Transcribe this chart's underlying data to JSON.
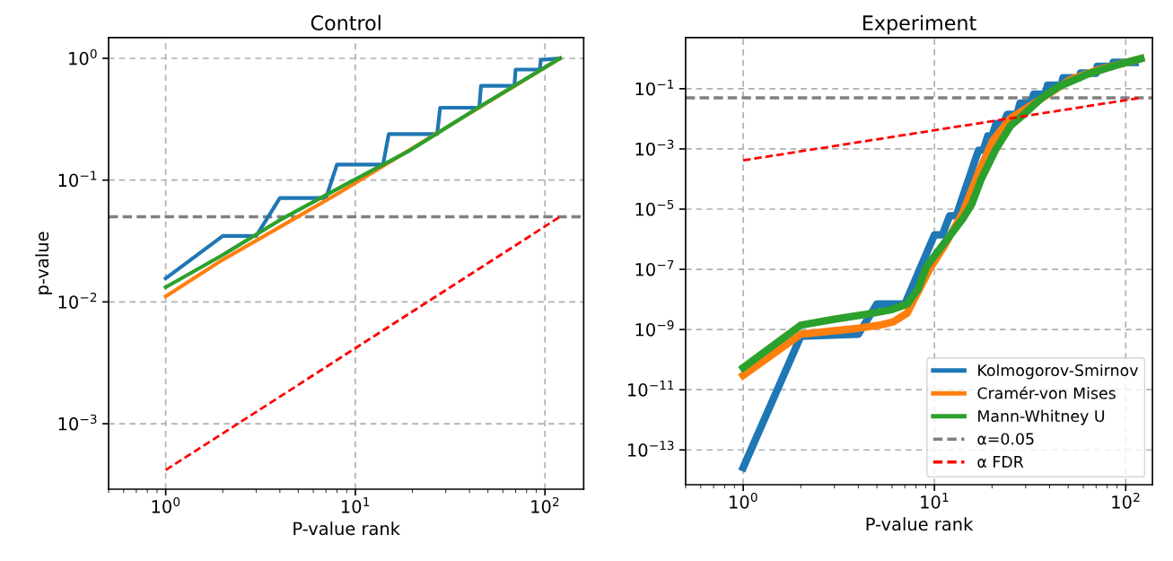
{
  "chart_data": [
    {
      "type": "line",
      "title": "Control",
      "xlabel": "P-value rank",
      "ylabel": "p-value",
      "log": "xy",
      "grid": true,
      "legend": false,
      "xlim": [
        0.5,
        160
      ],
      "ylim": [
        0.00029,
        1.48
      ],
      "xticks": [
        {
          "value": 1,
          "label": "10$^{0}$"
        },
        {
          "value": 10,
          "label": "10$^{1}$"
        },
        {
          "value": 100,
          "label": "10$^{2}$"
        }
      ],
      "yticks": [
        {
          "value": 0.001,
          "label": "10$^{−3}$"
        },
        {
          "value": 0.01,
          "label": "10$^{−2}$"
        },
        {
          "value": 0.1,
          "label": "10$^{−1}$"
        },
        {
          "value": 1,
          "label": "10$^{0}$"
        }
      ],
      "ref_lines": [
        {
          "axis": "y",
          "value": 0.05,
          "color": "#808080",
          "line_style": "dashed"
        }
      ],
      "series": [
        {
          "color": "#1f77b4",
          "x": [
            1,
            2,
            3,
            4,
            7,
            8,
            14,
            15,
            27,
            28,
            45,
            46,
            69,
            70,
            94,
            95,
            120
          ],
          "values": [
            0.0156,
            0.0348,
            0.0348,
            0.0713,
            0.0713,
            0.134,
            0.134,
            0.239,
            0.239,
            0.393,
            0.393,
            0.595,
            0.595,
            0.808,
            0.808,
            0.97,
            1.0
          ]
        },
        {
          "color": "#ff7f0e",
          "x": [
            1,
            2,
            4,
            8,
            27,
            120
          ],
          "values": [
            0.0111,
            0.0222,
            0.0412,
            0.0768,
            0.243,
            1.0
          ]
        },
        {
          "color": "#2ca02c",
          "x": [
            1,
            2,
            4,
            9,
            19,
            45,
            120
          ],
          "values": [
            0.0132,
            0.0243,
            0.047,
            0.093,
            0.172,
            0.398,
            1.0
          ]
        },
        {
          "color": "#ff0000",
          "line_style": "dashed",
          "x": [
            1,
            120
          ],
          "values": [
            0.000417,
            0.05
          ]
        }
      ]
    },
    {
      "type": "line",
      "title": "Experiment",
      "xlabel": "P-value rank",
      "log": "xy",
      "grid": true,
      "legend": "bottom right",
      "xlim": [
        0.5,
        138
      ],
      "ylim": [
        7e-15,
        5
      ],
      "xticks": [
        {
          "value": 1,
          "label": "10$^{0}$"
        },
        {
          "value": 10,
          "label": "10$^{1}$"
        },
        {
          "value": 100,
          "label": "10$^{2}$"
        }
      ],
      "yticks": [
        {
          "value": 1e-13,
          "label": "10$^{−13}$"
        },
        {
          "value": 1e-11,
          "label": "10$^{−11}$"
        },
        {
          "value": 1e-09,
          "label": "10$^{−9}$"
        },
        {
          "value": 1e-07,
          "label": "10$^{−7}$"
        },
        {
          "value": 1e-05,
          "label": "10$^{−5}$"
        },
        {
          "value": 0.001,
          "label": "10$^{−3}$"
        },
        {
          "value": 0.1,
          "label": "10$^{−1}$"
        }
      ],
      "ref_lines": [
        {
          "axis": "y",
          "value": 0.05,
          "label": "α=0.05",
          "color": "#808080",
          "line_style": "dashed"
        }
      ],
      "series": [
        {
          "name": "Kolmogorov-Smirnov",
          "color": "#1f77b4",
          "x": [
            1,
            2,
            4,
            5,
            7,
            10,
            11,
            12,
            13,
            17,
            18,
            19,
            20,
            21,
            23,
            24,
            27,
            28,
            32,
            33,
            38,
            39,
            46,
            47,
            57,
            58,
            70,
            71,
            85,
            86,
            112
          ],
          "values": [
            2.6e-14,
            6e-10,
            7e-10,
            7e-09,
            7e-09,
            1.4e-06,
            1.4e-06,
            6e-06,
            6e-06,
            0.0009,
            0.0009,
            0.0027,
            0.0027,
            0.007,
            0.007,
            0.014,
            0.014,
            0.033,
            0.033,
            0.066,
            0.066,
            0.13,
            0.13,
            0.23,
            0.23,
            0.33,
            0.33,
            0.55,
            0.55,
            0.75,
            0.75
          ]
        },
        {
          "name": "Cramér-von Mises",
          "color": "#ff7f0e",
          "x": [
            1,
            2,
            4,
            5.2,
            6.1,
            7.2,
            9.5,
            11.3,
            14.1,
            16.9,
            20.2,
            25,
            35.9,
            51.4,
            73.6,
            120
          ],
          "values": [
            3e-11,
            7e-10,
            1.1e-09,
            1.4e-09,
            1.8e-09,
            3.5e-09,
            1.1e-07,
            6.2e-07,
            7.8e-06,
            0.00015,
            0.0019,
            0.0105,
            0.045,
            0.2,
            0.45,
            1.0
          ]
        },
        {
          "name": "Mann-Whitney U",
          "color": "#2ca02c",
          "x": [
            1,
            2,
            3,
            4.4,
            5.9,
            7.2,
            8.2,
            9.1,
            11.3,
            14.1,
            15.7,
            17.5,
            20.9,
            25,
            28.9,
            36,
            44.5,
            62,
            88,
            120
          ],
          "values": [
            5.4e-11,
            1.4e-09,
            2.2e-09,
            3.2e-09,
            4.5e-09,
            7e-09,
            2.2e-08,
            1.25e-07,
            7.8e-07,
            4.9e-06,
            1.5e-05,
            9.5e-05,
            0.00095,
            0.0059,
            0.013,
            0.047,
            0.117,
            0.29,
            0.59,
            1.0
          ]
        },
        {
          "name": "α FDR",
          "color": "#ff0000",
          "line_style": "dashed",
          "x": [
            1,
            120
          ],
          "values": [
            0.000417,
            0.05
          ]
        }
      ]
    }
  ]
}
